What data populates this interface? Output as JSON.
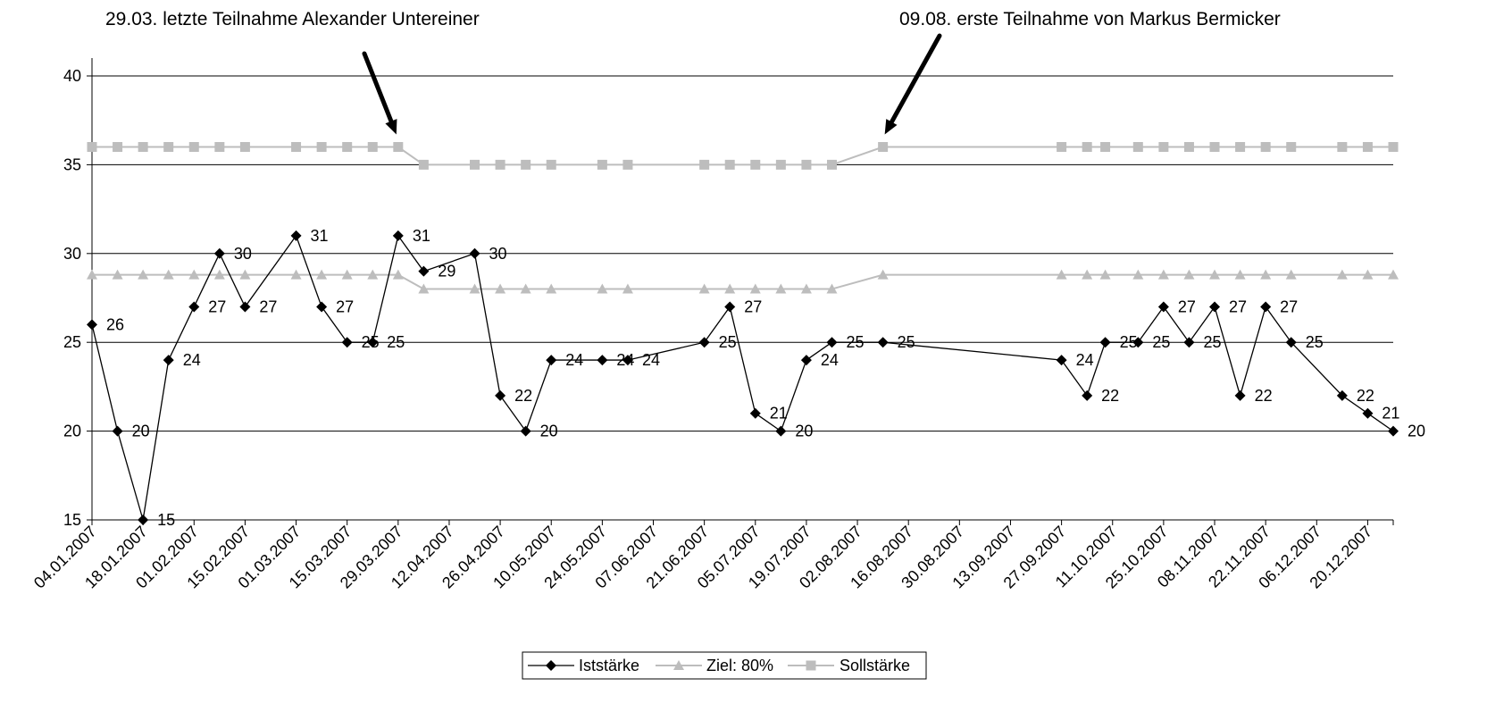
{
  "chart_data": {
    "type": "line",
    "annotations": [
      {
        "text": "29.03. letzte Teilnahme Alexander Untereiner",
        "target_date": "29.03.2007"
      },
      {
        "text": "09.08. erste Teilnahme von Markus Bermicker",
        "target_date": "09.08.2007"
      }
    ],
    "x_ticks": [
      "04.01.2007",
      "18.01.2007",
      "01.02.2007",
      "15.02.2007",
      "01.03.2007",
      "15.03.2007",
      "29.03.2007",
      "12.04.2007",
      "26.04.2007",
      "10.05.2007",
      "24.05.2007",
      "07.06.2007",
      "21.06.2007",
      "05.07.2007",
      "19.07.2007",
      "02.08.2007",
      "16.08.2007",
      "30.08.2007",
      "13.09.2007",
      "27.09.2007",
      "11.10.2007",
      "25.10.2007",
      "08.11.2007",
      "22.11.2007",
      "06.12.2007",
      "20.12.2007"
    ],
    "xlim": [
      "04.01.2007",
      "27.12.2007"
    ],
    "y_ticks": [
      15,
      20,
      25,
      30,
      35,
      40
    ],
    "ylim": [
      15,
      40
    ],
    "grid": true,
    "legend_position": "bottom",
    "series": [
      {
        "name": "Iststärke",
        "color": "#000000",
        "marker": "diamond",
        "data_labels": true,
        "points": [
          [
            "04.01.2007",
            26
          ],
          [
            "11.01.2007",
            20
          ],
          [
            "18.01.2007",
            15
          ],
          [
            "25.01.2007",
            24
          ],
          [
            "01.02.2007",
            27
          ],
          [
            "08.02.2007",
            30
          ],
          [
            "15.02.2007",
            27
          ],
          [
            "01.03.2007",
            31
          ],
          [
            "08.03.2007",
            27
          ],
          [
            "15.03.2007",
            25
          ],
          [
            "22.03.2007",
            25
          ],
          [
            "29.03.2007",
            31
          ],
          [
            "05.04.2007",
            29
          ],
          [
            "19.04.2007",
            30
          ],
          [
            "26.04.2007",
            22
          ],
          [
            "03.05.2007",
            20
          ],
          [
            "10.05.2007",
            24
          ],
          [
            "24.05.2007",
            24
          ],
          [
            "31.05.2007",
            24
          ],
          [
            "21.06.2007",
            25
          ],
          [
            "28.06.2007",
            27
          ],
          [
            "05.07.2007",
            21
          ],
          [
            "12.07.2007",
            20
          ],
          [
            "19.07.2007",
            24
          ],
          [
            "26.07.2007",
            25
          ],
          [
            "09.08.2007",
            25
          ],
          [
            "27.09.2007",
            24
          ],
          [
            "04.10.2007",
            22
          ],
          [
            "09.10.2007",
            25
          ],
          [
            "18.10.2007",
            25
          ],
          [
            "25.10.2007",
            27
          ],
          [
            "01.11.2007",
            25
          ],
          [
            "08.11.2007",
            27
          ],
          [
            "15.11.2007",
            22
          ],
          [
            "22.11.2007",
            27
          ],
          [
            "29.11.2007",
            25
          ],
          [
            "13.12.2007",
            22
          ],
          [
            "20.12.2007",
            21
          ],
          [
            "27.12.2007",
            20
          ]
        ]
      },
      {
        "name": "Ziel: 80%",
        "color": "#bdbdbd",
        "marker": "triangle",
        "points": [
          [
            "04.01.2007",
            28.8
          ],
          [
            "11.01.2007",
            28.8
          ],
          [
            "18.01.2007",
            28.8
          ],
          [
            "25.01.2007",
            28.8
          ],
          [
            "01.02.2007",
            28.8
          ],
          [
            "08.02.2007",
            28.8
          ],
          [
            "15.02.2007",
            28.8
          ],
          [
            "01.03.2007",
            28.8
          ],
          [
            "08.03.2007",
            28.8
          ],
          [
            "15.03.2007",
            28.8
          ],
          [
            "22.03.2007",
            28.8
          ],
          [
            "29.03.2007",
            28.8
          ],
          [
            "05.04.2007",
            28
          ],
          [
            "19.04.2007",
            28
          ],
          [
            "26.04.2007",
            28
          ],
          [
            "03.05.2007",
            28
          ],
          [
            "10.05.2007",
            28
          ],
          [
            "24.05.2007",
            28
          ],
          [
            "31.05.2007",
            28
          ],
          [
            "21.06.2007",
            28
          ],
          [
            "28.06.2007",
            28
          ],
          [
            "05.07.2007",
            28
          ],
          [
            "12.07.2007",
            28
          ],
          [
            "19.07.2007",
            28
          ],
          [
            "26.07.2007",
            28
          ],
          [
            "09.08.2007",
            28.8
          ],
          [
            "27.09.2007",
            28.8
          ],
          [
            "04.10.2007",
            28.8
          ],
          [
            "09.10.2007",
            28.8
          ],
          [
            "18.10.2007",
            28.8
          ],
          [
            "25.10.2007",
            28.8
          ],
          [
            "01.11.2007",
            28.8
          ],
          [
            "08.11.2007",
            28.8
          ],
          [
            "15.11.2007",
            28.8
          ],
          [
            "22.11.2007",
            28.8
          ],
          [
            "29.11.2007",
            28.8
          ],
          [
            "13.12.2007",
            28.8
          ],
          [
            "20.12.2007",
            28.8
          ],
          [
            "27.12.2007",
            28.8
          ]
        ]
      },
      {
        "name": "Sollstärke",
        "color": "#bdbdbd",
        "marker": "square",
        "points": [
          [
            "04.01.2007",
            36
          ],
          [
            "11.01.2007",
            36
          ],
          [
            "18.01.2007",
            36
          ],
          [
            "25.01.2007",
            36
          ],
          [
            "01.02.2007",
            36
          ],
          [
            "08.02.2007",
            36
          ],
          [
            "15.02.2007",
            36
          ],
          [
            "01.03.2007",
            36
          ],
          [
            "08.03.2007",
            36
          ],
          [
            "15.03.2007",
            36
          ],
          [
            "22.03.2007",
            36
          ],
          [
            "29.03.2007",
            36
          ],
          [
            "05.04.2007",
            35
          ],
          [
            "19.04.2007",
            35
          ],
          [
            "26.04.2007",
            35
          ],
          [
            "03.05.2007",
            35
          ],
          [
            "10.05.2007",
            35
          ],
          [
            "24.05.2007",
            35
          ],
          [
            "31.05.2007",
            35
          ],
          [
            "21.06.2007",
            35
          ],
          [
            "28.06.2007",
            35
          ],
          [
            "05.07.2007",
            35
          ],
          [
            "12.07.2007",
            35
          ],
          [
            "19.07.2007",
            35
          ],
          [
            "26.07.2007",
            35
          ],
          [
            "09.08.2007",
            36
          ],
          [
            "27.09.2007",
            36
          ],
          [
            "04.10.2007",
            36
          ],
          [
            "09.10.2007",
            36
          ],
          [
            "18.10.2007",
            36
          ],
          [
            "25.10.2007",
            36
          ],
          [
            "01.11.2007",
            36
          ],
          [
            "08.11.2007",
            36
          ],
          [
            "15.11.2007",
            36
          ],
          [
            "22.11.2007",
            36
          ],
          [
            "29.11.2007",
            36
          ],
          [
            "13.12.2007",
            36
          ],
          [
            "20.12.2007",
            36
          ],
          [
            "27.12.2007",
            36
          ]
        ]
      }
    ]
  }
}
